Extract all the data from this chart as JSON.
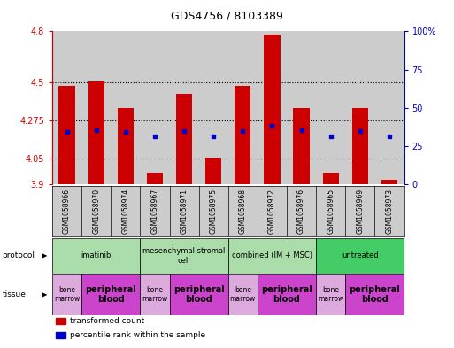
{
  "title": "GDS4756 / 8103389",
  "samples": [
    "GSM1058966",
    "GSM1058970",
    "GSM1058974",
    "GSM1058967",
    "GSM1058971",
    "GSM1058975",
    "GSM1058968",
    "GSM1058972",
    "GSM1058976",
    "GSM1058965",
    "GSM1058969",
    "GSM1058973"
  ],
  "red_values": [
    4.48,
    4.505,
    4.35,
    3.97,
    4.43,
    4.06,
    4.48,
    4.78,
    4.35,
    3.97,
    4.35,
    3.93
  ],
  "blue_values": [
    4.21,
    4.22,
    4.21,
    4.185,
    4.215,
    4.185,
    4.215,
    4.245,
    4.22,
    4.185,
    4.215,
    4.185
  ],
  "ylim_left": [
    3.9,
    4.8
  ],
  "ylim_right": [
    0,
    100
  ],
  "yticks_left": [
    3.9,
    4.05,
    4.275,
    4.5,
    4.8
  ],
  "yticks_right": [
    0,
    25,
    50,
    75,
    100
  ],
  "ytick_labels_left": [
    "3.9",
    "4.05",
    "4.275",
    "4.5",
    "4.8"
  ],
  "ytick_labels_right": [
    "0",
    "25",
    "50",
    "75",
    "100%"
  ],
  "grid_values": [
    4.05,
    4.275,
    4.5
  ],
  "bar_color": "#cc0000",
  "dot_color": "#0000cc",
  "bar_width": 0.55,
  "protocols": [
    {
      "label": "imatinib",
      "start": 0,
      "end": 3,
      "color": "#aaddaa"
    },
    {
      "label": "mesenchymal stromal\ncell",
      "start": 3,
      "end": 6,
      "color": "#aaddaa"
    },
    {
      "label": "combined (IM + MSC)",
      "start": 6,
      "end": 9,
      "color": "#aaddaa"
    },
    {
      "label": "untreated",
      "start": 9,
      "end": 12,
      "color": "#44cc66"
    }
  ],
  "tissues": [
    {
      "label": "bone\nmarrow",
      "start": 0,
      "end": 1,
      "color": "#ddaadd"
    },
    {
      "label": "peripheral\nblood",
      "start": 1,
      "end": 3,
      "color": "#cc44cc"
    },
    {
      "label": "bone\nmarrow",
      "start": 3,
      "end": 4,
      "color": "#ddaadd"
    },
    {
      "label": "peripheral\nblood",
      "start": 4,
      "end": 6,
      "color": "#cc44cc"
    },
    {
      "label": "bone\nmarrow",
      "start": 6,
      "end": 7,
      "color": "#ddaadd"
    },
    {
      "label": "peripheral\nblood",
      "start": 7,
      "end": 9,
      "color": "#cc44cc"
    },
    {
      "label": "bone\nmarrow",
      "start": 9,
      "end": 10,
      "color": "#ddaadd"
    },
    {
      "label": "peripheral\nblood",
      "start": 10,
      "end": 12,
      "color": "#cc44cc"
    }
  ],
  "legend_items": [
    {
      "label": "transformed count",
      "color": "#cc0000"
    },
    {
      "label": "percentile rank within the sample",
      "color": "#0000cc"
    }
  ],
  "left_axis_color": "#cc0000",
  "right_axis_color": "#0000cc",
  "col_bg_color": "#cccccc",
  "plot_bg": "#ffffff"
}
